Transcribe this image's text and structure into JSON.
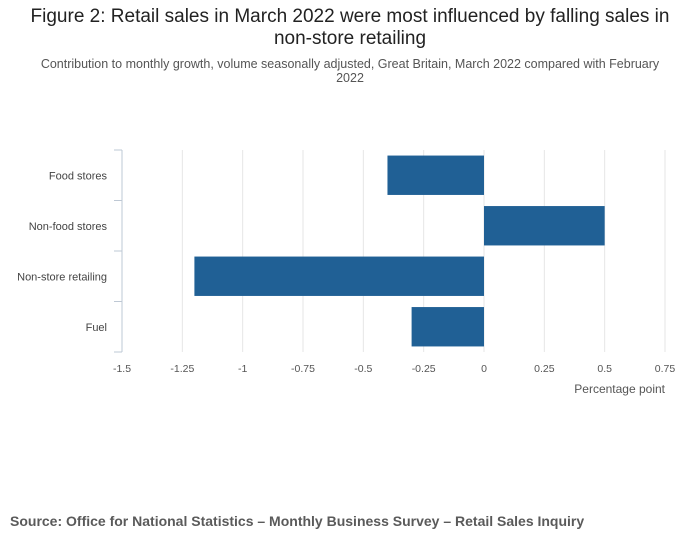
{
  "title_line1": "Figure 2: Retail sales in March 2022 were most influenced by falling sales in",
  "title_line2": "non-store retailing",
  "subtitle": "Contribution to monthly growth, volume seasonally adjusted, Great Britain, March 2022 compared with February 2022",
  "source": "Source: Office for National Statistics – Monthly Business Survey – Retail Sales Inquiry",
  "colors": {
    "bar": "#206095",
    "grid": "#e6e6e6",
    "axis": "#bec8d4"
  },
  "chart_data": {
    "type": "bar",
    "orientation": "horizontal",
    "categories": [
      "Food stores",
      "Non-food stores",
      "Non-store retailing",
      "Fuel"
    ],
    "values": [
      -0.4,
      0.5,
      -1.2,
      -0.3
    ],
    "xlim": [
      -1.5,
      0.75
    ],
    "xticks": [
      -1.5,
      -1.25,
      -1,
      -0.75,
      -0.5,
      -0.25,
      0,
      0.25,
      0.5,
      0.75
    ],
    "xtick_labels": [
      "-1.5",
      "-1.25",
      "-1",
      "-0.75",
      "-0.5",
      "-0.25",
      "0",
      "0.25",
      "0.5",
      "0.75"
    ],
    "xlabel": "Percentage point",
    "ylabel": "",
    "grid": true,
    "legend": "none"
  }
}
